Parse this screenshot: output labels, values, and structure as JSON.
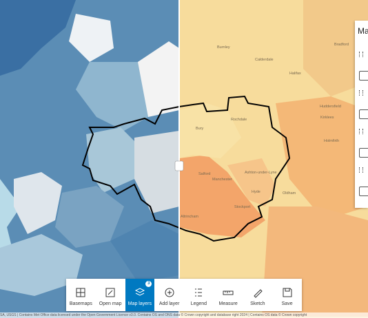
{
  "panel": {
    "title": "Ma"
  },
  "places": [
    "Burnley",
    "Halifax",
    "Bradford",
    "Rochdale",
    "Bury",
    "Huddersfield",
    "Salford",
    "Manchester",
    "Ashton-under-Lyne",
    "Stockport",
    "Altrincham",
    "Oldham",
    "Hyde",
    "Holmfirth",
    "Calderdale",
    "Kirklees"
  ],
  "toolbar": {
    "items": [
      "Basemaps",
      "Open map",
      "Map layers",
      "Add layer",
      "Legend",
      "Measure",
      "Sketch",
      "Save"
    ],
    "badge": "3"
  },
  "attribution": "SA, USGS | Contains Met Office data licensed under the Open Government Licence v3.0. Contains OS and ONS data © Crown copyright and database right 2024 | Contains OS data © Crown copyright"
}
